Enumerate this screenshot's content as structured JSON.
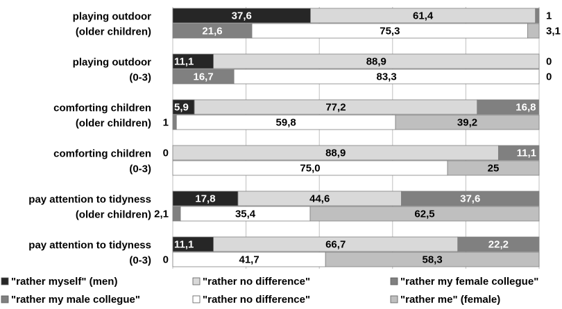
{
  "chart_data": {
    "type": "bar",
    "stacked": true,
    "orientation": "horizontal",
    "categories": [
      [
        "playing outdoor",
        "(older children)"
      ],
      [
        "playing outdoor",
        "(0-3)"
      ],
      [
        "comforting children",
        "(older children)"
      ],
      [
        "comforting children",
        "(0-3)"
      ],
      [
        "pay attention to tidyness",
        "(older children)"
      ],
      [
        "pay attention to tidyness",
        "(0-3)"
      ]
    ],
    "xlim": [
      0,
      100
    ],
    "grid": true,
    "legend_position": "bottom",
    "colors": {
      "men_myself": "#262626",
      "men_no_difference": "#d9d9d9",
      "men_female_colleague": "#808080",
      "women_male_colleague": "#808080",
      "women_no_difference": "#ffffff",
      "women_me": "#bfbfbf"
    },
    "groups": [
      {
        "bars": [
          {
            "respondent": "men",
            "segments": [
              {
                "series": "men_myself",
                "value": 37.6,
                "label": "37,6"
              },
              {
                "series": "men_no_difference",
                "value": 61.4,
                "label": "61,4"
              },
              {
                "series": "men_female_colleague",
                "value": 1,
                "label": "1"
              }
            ]
          },
          {
            "respondent": "women",
            "segments": [
              {
                "series": "women_male_colleague",
                "value": 21.6,
                "label": "21,6"
              },
              {
                "series": "women_no_difference",
                "value": 75.3,
                "label": "75,3"
              },
              {
                "series": "women_me",
                "value": 3.1,
                "label": "3,1"
              }
            ]
          }
        ]
      },
      {
        "bars": [
          {
            "respondent": "men",
            "segments": [
              {
                "series": "men_myself",
                "value": 11.1,
                "label": "11,1"
              },
              {
                "series": "men_no_difference",
                "value": 88.9,
                "label": "88,9"
              },
              {
                "series": "men_female_colleague",
                "value": 0,
                "label": "0"
              }
            ]
          },
          {
            "respondent": "women",
            "segments": [
              {
                "series": "women_male_colleague",
                "value": 16.7,
                "label": "16,7"
              },
              {
                "series": "women_no_difference",
                "value": 83.3,
                "label": "83,3"
              },
              {
                "series": "women_me",
                "value": 0,
                "label": "0"
              }
            ]
          }
        ]
      },
      {
        "bars": [
          {
            "respondent": "men",
            "segments": [
              {
                "series": "men_myself",
                "value": 5.9,
                "label": "5,9"
              },
              {
                "series": "men_no_difference",
                "value": 77.2,
                "label": "77,2"
              },
              {
                "series": "men_female_colleague",
                "value": 16.8,
                "label": "16,8"
              }
            ]
          },
          {
            "respondent": "women",
            "segments": [
              {
                "series": "women_male_colleague",
                "value": 1,
                "label": "1"
              },
              {
                "series": "women_no_difference",
                "value": 59.8,
                "label": "59,8"
              },
              {
                "series": "women_me",
                "value": 39.2,
                "label": "39,2"
              }
            ]
          }
        ]
      },
      {
        "bars": [
          {
            "respondent": "men",
            "segments": [
              {
                "series": "men_myself",
                "value": 0,
                "label": "0"
              },
              {
                "series": "men_no_difference",
                "value": 88.9,
                "label": "88,9"
              },
              {
                "series": "men_female_colleague",
                "value": 11.1,
                "label": "11,1"
              }
            ]
          },
          {
            "respondent": "women",
            "segments": [
              {
                "series": "women_male_colleague",
                "value": 0,
                "label": ""
              },
              {
                "series": "women_no_difference",
                "value": 75.0,
                "label": "75,0"
              },
              {
                "series": "women_me",
                "value": 25,
                "label": "25"
              }
            ]
          }
        ]
      },
      {
        "bars": [
          {
            "respondent": "men",
            "segments": [
              {
                "series": "men_myself",
                "value": 17.8,
                "label": "17,8"
              },
              {
                "series": "men_no_difference",
                "value": 44.6,
                "label": "44,6"
              },
              {
                "series": "men_female_colleague",
                "value": 37.6,
                "label": "37,6"
              }
            ]
          },
          {
            "respondent": "women",
            "segments": [
              {
                "series": "women_male_colleague",
                "value": 2.1,
                "label": "2,1"
              },
              {
                "series": "women_no_difference",
                "value": 35.4,
                "label": "35,4"
              },
              {
                "series": "women_me",
                "value": 62.5,
                "label": "62,5"
              }
            ]
          }
        ]
      },
      {
        "bars": [
          {
            "respondent": "men",
            "segments": [
              {
                "series": "men_myself",
                "value": 11.1,
                "label": "11,1"
              },
              {
                "series": "men_no_difference",
                "value": 66.7,
                "label": "66,7"
              },
              {
                "series": "men_female_colleague",
                "value": 22.2,
                "label": "22,2"
              }
            ]
          },
          {
            "respondent": "women",
            "segments": [
              {
                "series": "women_male_colleague",
                "value": 0,
                "label": "0"
              },
              {
                "series": "women_no_difference",
                "value": 41.7,
                "label": "41,7"
              },
              {
                "series": "women_me",
                "value": 58.3,
                "label": "58,3"
              }
            ]
          }
        ]
      }
    ],
    "legend": [
      {
        "series": "men_myself",
        "label": "\"rather myself\" (men)"
      },
      {
        "series": "men_no_difference",
        "label": "\"rather no difference\""
      },
      {
        "series": "men_female_colleague",
        "label": "\"rather my female collegue\""
      },
      {
        "series": "women_male_colleague",
        "label": "\"rather my male collegue\""
      },
      {
        "series": "women_no_difference",
        "label": "\"rather no difference\""
      },
      {
        "series": "women_me",
        "label": "\"rather me\" (female)"
      }
    ]
  }
}
